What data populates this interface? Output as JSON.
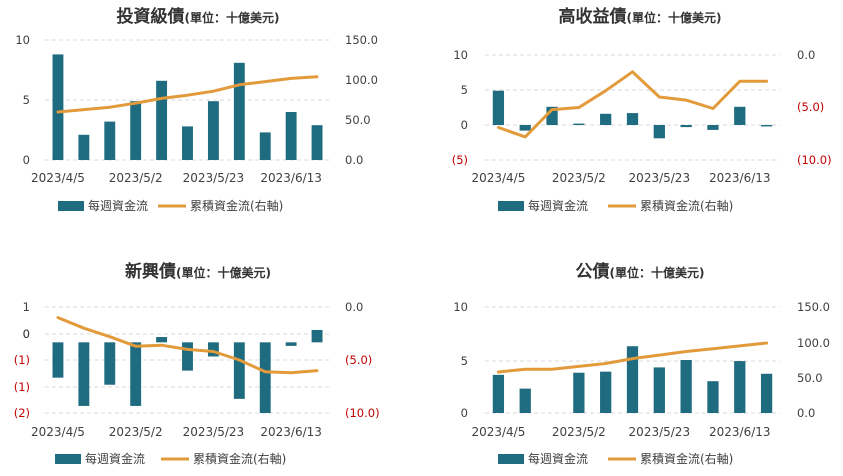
{
  "colors": {
    "bar": "#1F6B7F",
    "line": "#E29A3A",
    "grid": "#D9D9D9",
    "text": "#404040",
    "negative": "#C00000"
  },
  "legend": {
    "bar": "每週資金流",
    "line": "累積資金流(右軸)"
  },
  "chart_data": [
    {
      "type": "bar",
      "title": "投資級債",
      "subtitle": "(單位：十億美元)",
      "x_tick_labels": [
        "2023/4/5",
        "2023/5/2",
        "2023/5/23",
        "2023/6/13"
      ],
      "left_ticks": [
        "0",
        "5",
        "10"
      ],
      "right_ticks": [
        "0.0",
        "50.0",
        "100.0",
        "150.0"
      ],
      "ylim": [
        0,
        10
      ],
      "y2lim": [
        0,
        150
      ],
      "series": [
        {
          "name": "每週資金流",
          "axis": "left",
          "values": [
            8.8,
            2.1,
            3.2,
            4.9,
            6.6,
            2.8,
            4.9,
            8.1,
            2.3,
            4.0,
            2.9
          ]
        },
        {
          "name": "累積資金流(右軸)",
          "axis": "right",
          "values": [
            60,
            63,
            66,
            71,
            77,
            81,
            86,
            94,
            98,
            102,
            104
          ]
        }
      ]
    },
    {
      "type": "bar",
      "title": "高收益債",
      "subtitle": "(單位：十億美元)",
      "x_tick_labels": [
        "2023/4/5",
        "2023/5/2",
        "2023/5/23",
        "2023/6/13"
      ],
      "left_ticks": [
        "(5)",
        "0",
        "5",
        "10"
      ],
      "right_ticks": [
        "(10.0)",
        "(5.0)",
        "0.0"
      ],
      "ylim": [
        -5,
        10
      ],
      "y2lim": [
        -10,
        0
      ],
      "series": [
        {
          "name": "每週資金流",
          "axis": "left",
          "values": [
            4.9,
            -0.8,
            2.6,
            0.2,
            1.6,
            1.7,
            -1.9,
            -0.3,
            -0.7,
            2.6,
            -0.2
          ]
        },
        {
          "name": "累積資金流(右軸)",
          "axis": "right",
          "values": [
            -6.9,
            -7.8,
            -5.2,
            -5.0,
            -3.4,
            -1.6,
            -4.0,
            -4.3,
            -5.1,
            -2.5,
            -2.5
          ]
        }
      ]
    },
    {
      "type": "bar",
      "title": "新興債",
      "subtitle": "(單位：十億美元)",
      "x_tick_labels": [
        "2023/4/5",
        "2023/5/2",
        "2023/5/23",
        "2023/6/13"
      ],
      "left_ticks": [
        "(2)",
        "(1)",
        "(1)",
        "0",
        "0",
        "1"
      ],
      "right_ticks": [
        "(10.0)",
        "(5.0)",
        "0.0"
      ],
      "ylim": [
        -2,
        1
      ],
      "y2lim": [
        -10,
        0
      ],
      "series": [
        {
          "name": "每週資金流",
          "axis": "left",
          "values": [
            -1.0,
            -1.8,
            -1.2,
            -1.8,
            0.15,
            -0.8,
            -0.4,
            -1.6,
            -2.0,
            -0.1,
            0.35
          ]
        },
        {
          "name": "累積資金流(右軸)",
          "axis": "right",
          "values": [
            -1.0,
            -2.0,
            -2.8,
            -3.7,
            -3.6,
            -4.0,
            -4.2,
            -5.0,
            -6.1,
            -6.2,
            -6.0
          ]
        }
      ]
    },
    {
      "type": "bar",
      "title": "公債",
      "subtitle": "(單位：十億美元)",
      "x_tick_labels": [
        "2023/4/5",
        "2023/5/2",
        "2023/5/23",
        "2023/6/13"
      ],
      "left_ticks": [
        "0",
        "5",
        "10"
      ],
      "right_ticks": [
        "0.0",
        "50.0",
        "100.0",
        "150.0"
      ],
      "ylim": [
        0,
        10
      ],
      "y2lim": [
        0,
        150
      ],
      "series": [
        {
          "name": "每週資金流",
          "axis": "left",
          "values": [
            3.6,
            2.3,
            0,
            3.8,
            3.9,
            6.3,
            4.3,
            5.0,
            3.0,
            4.9,
            3.7
          ]
        },
        {
          "name": "累積資金流(右軸)",
          "axis": "right",
          "values": [
            58,
            62,
            62,
            66,
            70,
            77,
            82,
            87,
            91,
            95,
            99
          ]
        }
      ]
    }
  ]
}
